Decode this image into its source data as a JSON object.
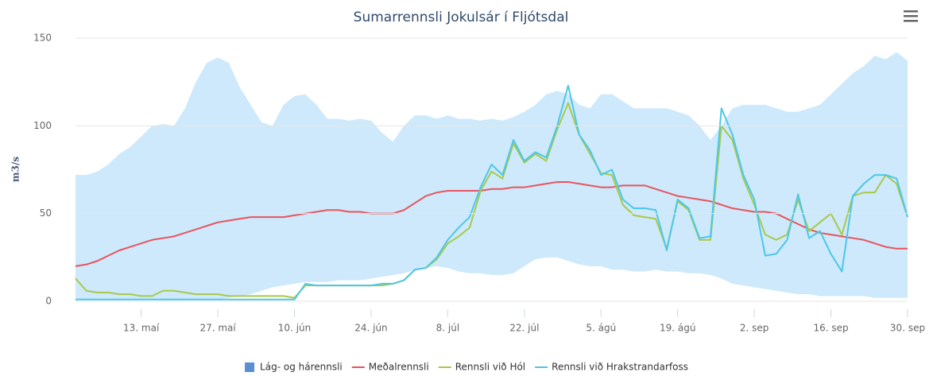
{
  "chart_data": {
    "type": "line",
    "title": "Sumarrennsli Jokulsár í Fljótsdal",
    "y_label": "m3/s",
    "x": [
      0,
      2,
      4,
      6,
      8,
      10,
      12,
      14,
      16,
      18,
      20,
      22,
      24,
      26,
      28,
      30,
      32,
      34,
      36,
      38,
      40,
      42,
      44,
      46,
      48,
      50,
      52,
      54,
      56,
      58,
      60,
      62,
      64,
      66,
      68,
      70,
      72,
      74,
      76,
      78,
      80,
      82,
      84,
      86,
      88,
      90,
      92,
      94,
      96,
      98,
      100,
      102,
      104,
      106,
      108,
      110,
      112,
      114,
      116,
      118,
      120,
      122,
      124,
      126,
      128,
      130,
      132,
      134,
      136,
      138,
      140,
      142,
      144,
      146,
      148,
      150,
      152
    ],
    "xlim": [
      0,
      152
    ],
    "xticks": [
      {
        "value": 12,
        "label": "13. maí"
      },
      {
        "value": 26,
        "label": "27. maí"
      },
      {
        "value": 40,
        "label": "10. jún"
      },
      {
        "value": 54,
        "label": "24. jún"
      },
      {
        "value": 68,
        "label": "8. júl"
      },
      {
        "value": 82,
        "label": "22. júl"
      },
      {
        "value": 96,
        "label": "5. ágú"
      },
      {
        "value": 110,
        "label": "19. ágú"
      },
      {
        "value": 124,
        "label": "2. sep"
      },
      {
        "value": 138,
        "label": "16. sep"
      },
      {
        "value": 152,
        "label": "30. sep"
      }
    ],
    "ylim": [
      0,
      150
    ],
    "yticks": [
      0,
      50,
      100,
      150
    ],
    "grid": true,
    "series": [
      {
        "name": "Lág- og hárennsli",
        "type": "arearange",
        "color": "#cde9fb",
        "legend_color": "#5b8fd4",
        "low": [
          1,
          1,
          1,
          1,
          1,
          1,
          1,
          1,
          1,
          1,
          1,
          1,
          1,
          1,
          2,
          3,
          4,
          6,
          8,
          9,
          10,
          11,
          11,
          11,
          12,
          12,
          12,
          13,
          14,
          15,
          16,
          18,
          19,
          20,
          19,
          17,
          16,
          16,
          15,
          15,
          16,
          20,
          24,
          25,
          25,
          23,
          21,
          20,
          20,
          18,
          18,
          17,
          17,
          18,
          17,
          17,
          16,
          16,
          15,
          13,
          10,
          9,
          8,
          7,
          6,
          5,
          4,
          4,
          3,
          3,
          3,
          3,
          3,
          2,
          2,
          2,
          2
        ],
        "high": [
          72,
          72,
          74,
          78,
          84,
          88,
          94,
          100,
          101,
          100,
          110,
          125,
          136,
          139,
          136,
          122,
          112,
          102,
          100,
          112,
          117,
          118,
          112,
          104,
          104,
          103,
          104,
          103,
          96,
          91,
          100,
          106,
          106,
          104,
          106,
          104,
          104,
          103,
          104,
          103,
          105,
          108,
          112,
          118,
          120,
          118,
          112,
          110,
          118,
          118,
          114,
          110,
          110,
          110,
          110,
          108,
          106,
          100,
          92,
          100,
          110,
          112,
          112,
          112,
          110,
          108,
          108,
          110,
          112,
          118,
          124,
          130,
          134,
          140,
          138,
          142,
          137
        ]
      },
      {
        "name": "Meðalrennsli",
        "color": "#e8545c",
        "values": [
          20,
          21,
          23,
          26,
          29,
          31,
          33,
          35,
          36,
          37,
          39,
          41,
          43,
          45,
          46,
          47,
          48,
          48,
          48,
          48,
          49,
          50,
          51,
          52,
          52,
          51,
          51,
          50,
          50,
          50,
          52,
          56,
          60,
          62,
          63,
          63,
          63,
          63,
          64,
          64,
          65,
          65,
          66,
          67,
          68,
          68,
          67,
          66,
          65,
          65,
          66,
          66,
          66,
          64,
          62,
          60,
          59,
          58,
          57,
          55,
          53,
          52,
          51,
          51,
          50,
          47,
          44,
          41,
          39,
          38,
          37,
          36,
          35,
          33,
          31,
          30,
          30
        ]
      },
      {
        "name": "Rennsli við Hól",
        "color": "#a8c94a",
        "values": [
          13,
          6,
          5,
          5,
          4,
          4,
          3,
          3,
          6,
          6,
          5,
          4,
          4,
          4,
          3,
          3,
          3,
          3,
          3,
          3,
          2,
          9,
          9,
          9,
          9,
          9,
          9,
          9,
          9,
          10,
          12,
          18,
          19,
          24,
          33,
          37,
          42,
          63,
          74,
          70,
          90,
          79,
          84,
          80,
          98,
          113,
          95,
          84,
          73,
          72,
          55,
          49,
          48,
          47,
          30,
          57,
          52,
          35,
          35,
          100,
          92,
          70,
          55,
          38,
          35,
          38,
          58,
          40,
          45,
          50,
          38,
          60,
          62,
          62,
          72,
          67,
          48
        ]
      },
      {
        "name": "Rennsli við Hrakstrandarfoss",
        "color": "#4cc7e8",
        "values": [
          1,
          1,
          1,
          1,
          1,
          1,
          1,
          1,
          1,
          1,
          1,
          1,
          1,
          1,
          1,
          1,
          1,
          1,
          1,
          1,
          1,
          10,
          9,
          9,
          9,
          9,
          9,
          9,
          10,
          10,
          12,
          18,
          19,
          25,
          35,
          42,
          48,
          65,
          78,
          72,
          92,
          80,
          85,
          82,
          100,
          123,
          95,
          86,
          72,
          75,
          58,
          53,
          53,
          52,
          29,
          58,
          53,
          36,
          37,
          110,
          95,
          72,
          58,
          26,
          27,
          35,
          61,
          36,
          40,
          27,
          17,
          60,
          67,
          72,
          72,
          70,
          48
        ]
      }
    ]
  }
}
